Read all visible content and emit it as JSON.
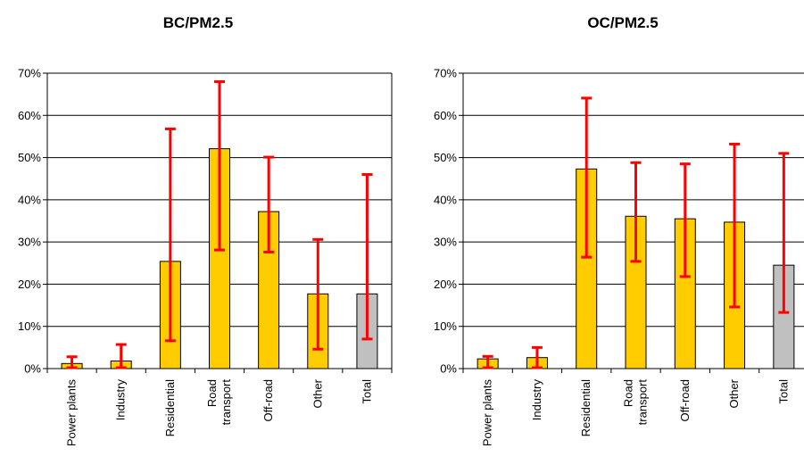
{
  "chart_data": [
    {
      "type": "bar",
      "title": "BC/PM2.5",
      "categories": [
        [
          "Power plants"
        ],
        [
          "Industry"
        ],
        [
          "Residential"
        ],
        [
          "Road",
          "transport"
        ],
        [
          "Off-road"
        ],
        [
          "Other"
        ],
        [
          "Total"
        ]
      ],
      "values": [
        0.012,
        0.018,
        0.254,
        0.521,
        0.372,
        0.177,
        0.177
      ],
      "error_low": [
        0.002,
        0.002,
        0.066,
        0.281,
        0.276,
        0.046,
        0.07
      ],
      "error_high": [
        0.028,
        0.057,
        0.568,
        0.68,
        0.501,
        0.306,
        0.46
      ],
      "ylim": [
        0,
        0.7
      ],
      "yticks": [
        "0%",
        "10%",
        "20%",
        "30%",
        "40%",
        "50%",
        "60%",
        "70%"
      ],
      "xlabel": "",
      "ylabel": "",
      "grid": true
    },
    {
      "type": "bar",
      "title": "OC/PM2.5",
      "categories": [
        [
          "Power plants"
        ],
        [
          "Industry"
        ],
        [
          "Residential"
        ],
        [
          "Road",
          "transport"
        ],
        [
          "Off-road"
        ],
        [
          "Other"
        ],
        [
          "Total"
        ]
      ],
      "values": [
        0.023,
        0.026,
        0.473,
        0.361,
        0.355,
        0.347,
        0.245
      ],
      "error_low": [
        0.002,
        0.002,
        0.264,
        0.254,
        0.218,
        0.146,
        0.133
      ],
      "error_high": [
        0.029,
        0.05,
        0.641,
        0.488,
        0.485,
        0.532,
        0.51
      ],
      "ylim": [
        0,
        0.7
      ],
      "yticks": [
        "0%",
        "10%",
        "20%",
        "30%",
        "40%",
        "50%",
        "60%",
        "70%"
      ],
      "xlabel": "",
      "ylabel": "",
      "grid": true
    }
  ],
  "colors": {
    "bar": "#FFCC00",
    "total_bar": "#C0C0C0",
    "error": "#FF0000",
    "axis": "#000000",
    "grid": "#000000"
  }
}
